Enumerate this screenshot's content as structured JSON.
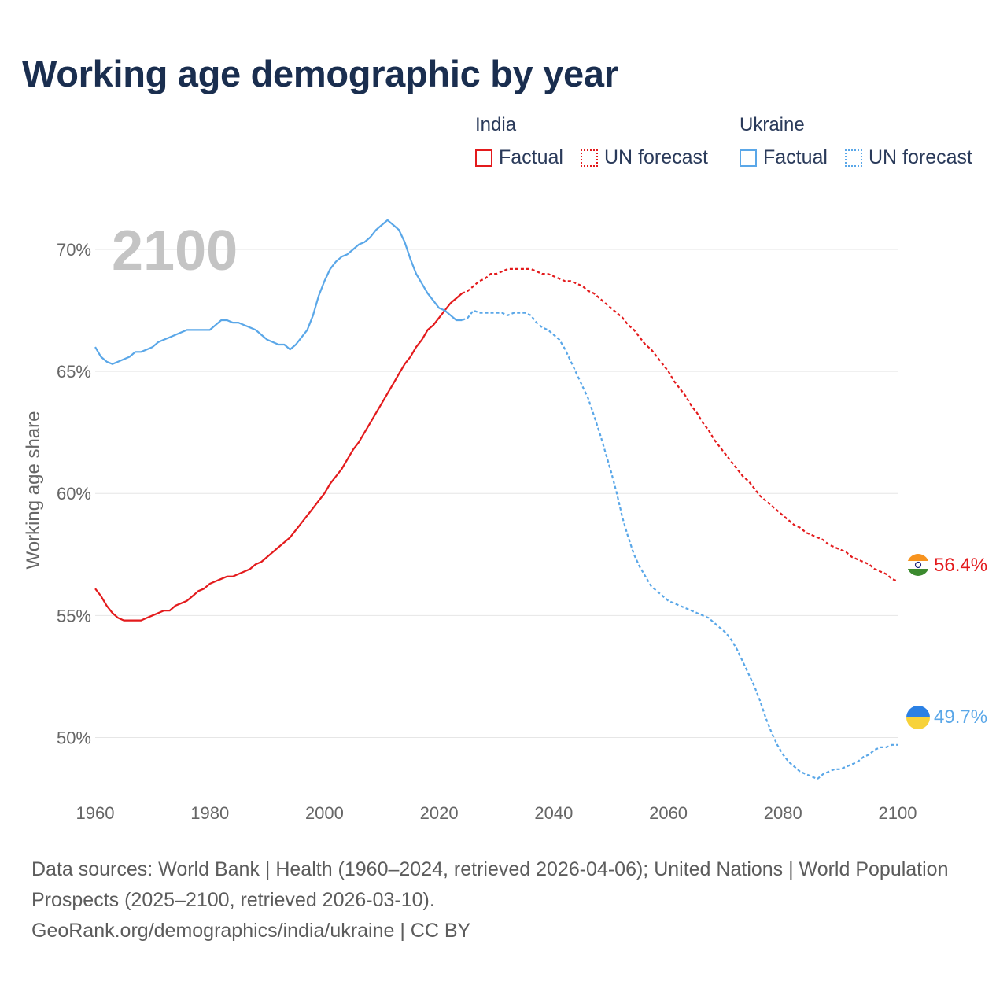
{
  "title": "Working age demographic by year",
  "year_label": "2100",
  "legend": {
    "india": {
      "title": "India",
      "factual": "Factual",
      "forecast": "UN forecast"
    },
    "ukraine": {
      "title": "Ukraine",
      "factual": "Factual",
      "forecast": "UN forecast"
    }
  },
  "footer": {
    "sources": "Data sources: World Bank | Health (1960–2024, retrieved 2026-04-06); United Nations | World Population Prospects (2025–2100, retrieved 2026-03-10).",
    "credit": "GeoRank.org/demographics/india/ukraine | CC BY"
  },
  "colors": {
    "india": "#e31a1c",
    "ukraine": "#5aa7e8",
    "grid": "#e6e6e6",
    "axis_text": "#666666",
    "year_watermark": "#c4c4c4"
  },
  "chart_data": {
    "type": "line",
    "title": "Working age demographic by year",
    "xlabel": "",
    "ylabel": "Working age share",
    "xlim": [
      1960,
      2100
    ],
    "ylim": [
      47.5,
      72
    ],
    "x_ticks": [
      1960,
      1980,
      2000,
      2020,
      2040,
      2060,
      2080,
      2100
    ],
    "y_ticks": [
      50,
      55,
      60,
      65,
      70
    ],
    "y_tick_labels": [
      "50%",
      "55%",
      "60%",
      "65%",
      "70%"
    ],
    "series": [
      {
        "name": "India",
        "segment": "Factual",
        "style": "solid",
        "points": [
          [
            1960,
            56.1
          ],
          [
            1961,
            55.8
          ],
          [
            1962,
            55.4
          ],
          [
            1963,
            55.1
          ],
          [
            1964,
            54.9
          ],
          [
            1965,
            54.8
          ],
          [
            1966,
            54.8
          ],
          [
            1967,
            54.8
          ],
          [
            1968,
            54.8
          ],
          [
            1969,
            54.9
          ],
          [
            1970,
            55.0
          ],
          [
            1971,
            55.1
          ],
          [
            1972,
            55.2
          ],
          [
            1973,
            55.2
          ],
          [
            1974,
            55.4
          ],
          [
            1975,
            55.5
          ],
          [
            1976,
            55.6
          ],
          [
            1977,
            55.8
          ],
          [
            1978,
            56.0
          ],
          [
            1979,
            56.1
          ],
          [
            1980,
            56.3
          ],
          [
            1981,
            56.4
          ],
          [
            1982,
            56.5
          ],
          [
            1983,
            56.6
          ],
          [
            1984,
            56.6
          ],
          [
            1985,
            56.7
          ],
          [
            1986,
            56.8
          ],
          [
            1987,
            56.9
          ],
          [
            1988,
            57.1
          ],
          [
            1989,
            57.2
          ],
          [
            1990,
            57.4
          ],
          [
            1991,
            57.6
          ],
          [
            1992,
            57.8
          ],
          [
            1993,
            58.0
          ],
          [
            1994,
            58.2
          ],
          [
            1995,
            58.5
          ],
          [
            1996,
            58.8
          ],
          [
            1997,
            59.1
          ],
          [
            1998,
            59.4
          ],
          [
            1999,
            59.7
          ],
          [
            2000,
            60.0
          ],
          [
            2001,
            60.4
          ],
          [
            2002,
            60.7
          ],
          [
            2003,
            61.0
          ],
          [
            2004,
            61.4
          ],
          [
            2005,
            61.8
          ],
          [
            2006,
            62.1
          ],
          [
            2007,
            62.5
          ],
          [
            2008,
            62.9
          ],
          [
            2009,
            63.3
          ],
          [
            2010,
            63.7
          ],
          [
            2011,
            64.1
          ],
          [
            2012,
            64.5
          ],
          [
            2013,
            64.9
          ],
          [
            2014,
            65.3
          ],
          [
            2015,
            65.6
          ],
          [
            2016,
            66.0
          ],
          [
            2017,
            66.3
          ],
          [
            2018,
            66.7
          ],
          [
            2019,
            66.9
          ],
          [
            2020,
            67.2
          ],
          [
            2021,
            67.5
          ],
          [
            2022,
            67.8
          ],
          [
            2023,
            68.0
          ],
          [
            2024,
            68.2
          ]
        ]
      },
      {
        "name": "India",
        "segment": "UN forecast",
        "style": "dashed",
        "points": [
          [
            2024,
            68.2
          ],
          [
            2025,
            68.3
          ],
          [
            2026,
            68.5
          ],
          [
            2027,
            68.7
          ],
          [
            2028,
            68.8
          ],
          [
            2029,
            69.0
          ],
          [
            2030,
            69.0
          ],
          [
            2031,
            69.1
          ],
          [
            2032,
            69.2
          ],
          [
            2033,
            69.2
          ],
          [
            2034,
            69.2
          ],
          [
            2035,
            69.2
          ],
          [
            2036,
            69.2
          ],
          [
            2037,
            69.1
          ],
          [
            2038,
            69.0
          ],
          [
            2039,
            69.0
          ],
          [
            2040,
            68.9
          ],
          [
            2041,
            68.8
          ],
          [
            2042,
            68.7
          ],
          [
            2043,
            68.7
          ],
          [
            2044,
            68.6
          ],
          [
            2045,
            68.5
          ],
          [
            2046,
            68.3
          ],
          [
            2047,
            68.2
          ],
          [
            2048,
            68.0
          ],
          [
            2049,
            67.8
          ],
          [
            2050,
            67.6
          ],
          [
            2051,
            67.4
          ],
          [
            2052,
            67.2
          ],
          [
            2053,
            66.9
          ],
          [
            2054,
            66.7
          ],
          [
            2055,
            66.4
          ],
          [
            2056,
            66.1
          ],
          [
            2057,
            65.9
          ],
          [
            2058,
            65.6
          ],
          [
            2059,
            65.3
          ],
          [
            2060,
            65.0
          ],
          [
            2061,
            64.6
          ],
          [
            2062,
            64.3
          ],
          [
            2063,
            64.0
          ],
          [
            2064,
            63.6
          ],
          [
            2065,
            63.3
          ],
          [
            2066,
            62.9
          ],
          [
            2067,
            62.6
          ],
          [
            2068,
            62.2
          ],
          [
            2069,
            61.9
          ],
          [
            2070,
            61.6
          ],
          [
            2071,
            61.3
          ],
          [
            2072,
            61.0
          ],
          [
            2073,
            60.7
          ],
          [
            2074,
            60.5
          ],
          [
            2075,
            60.2
          ],
          [
            2076,
            59.9
          ],
          [
            2077,
            59.7
          ],
          [
            2078,
            59.5
          ],
          [
            2079,
            59.3
          ],
          [
            2080,
            59.1
          ],
          [
            2081,
            58.9
          ],
          [
            2082,
            58.7
          ],
          [
            2083,
            58.6
          ],
          [
            2084,
            58.4
          ],
          [
            2085,
            58.3
          ],
          [
            2086,
            58.2
          ],
          [
            2087,
            58.1
          ],
          [
            2088,
            57.9
          ],
          [
            2089,
            57.8
          ],
          [
            2090,
            57.7
          ],
          [
            2091,
            57.6
          ],
          [
            2092,
            57.4
          ],
          [
            2093,
            57.3
          ],
          [
            2094,
            57.2
          ],
          [
            2095,
            57.1
          ],
          [
            2096,
            56.9
          ],
          [
            2097,
            56.8
          ],
          [
            2098,
            56.7
          ],
          [
            2099,
            56.5
          ],
          [
            2100,
            56.4
          ]
        ]
      },
      {
        "name": "Ukraine",
        "segment": "Factual",
        "style": "solid",
        "points": [
          [
            1960,
            66.0
          ],
          [
            1961,
            65.6
          ],
          [
            1962,
            65.4
          ],
          [
            1963,
            65.3
          ],
          [
            1964,
            65.4
          ],
          [
            1965,
            65.5
          ],
          [
            1966,
            65.6
          ],
          [
            1967,
            65.8
          ],
          [
            1968,
            65.8
          ],
          [
            1969,
            65.9
          ],
          [
            1970,
            66.0
          ],
          [
            1971,
            66.2
          ],
          [
            1972,
            66.3
          ],
          [
            1973,
            66.4
          ],
          [
            1974,
            66.5
          ],
          [
            1975,
            66.6
          ],
          [
            1976,
            66.7
          ],
          [
            1977,
            66.7
          ],
          [
            1978,
            66.7
          ],
          [
            1979,
            66.7
          ],
          [
            1980,
            66.7
          ],
          [
            1981,
            66.9
          ],
          [
            1982,
            67.1
          ],
          [
            1983,
            67.1
          ],
          [
            1984,
            67.0
          ],
          [
            1985,
            67.0
          ],
          [
            1986,
            66.9
          ],
          [
            1987,
            66.8
          ],
          [
            1988,
            66.7
          ],
          [
            1989,
            66.5
          ],
          [
            1990,
            66.3
          ],
          [
            1991,
            66.2
          ],
          [
            1992,
            66.1
          ],
          [
            1993,
            66.1
          ],
          [
            1994,
            65.9
          ],
          [
            1995,
            66.1
          ],
          [
            1996,
            66.4
          ],
          [
            1997,
            66.7
          ],
          [
            1998,
            67.3
          ],
          [
            1999,
            68.1
          ],
          [
            2000,
            68.7
          ],
          [
            2001,
            69.2
          ],
          [
            2002,
            69.5
          ],
          [
            2003,
            69.7
          ],
          [
            2004,
            69.8
          ],
          [
            2005,
            70.0
          ],
          [
            2006,
            70.2
          ],
          [
            2007,
            70.3
          ],
          [
            2008,
            70.5
          ],
          [
            2009,
            70.8
          ],
          [
            2010,
            71.0
          ],
          [
            2011,
            71.2
          ],
          [
            2012,
            71.0
          ],
          [
            2013,
            70.8
          ],
          [
            2014,
            70.3
          ],
          [
            2015,
            69.6
          ],
          [
            2016,
            69.0
          ],
          [
            2017,
            68.6
          ],
          [
            2018,
            68.2
          ],
          [
            2019,
            67.9
          ],
          [
            2020,
            67.6
          ],
          [
            2021,
            67.5
          ],
          [
            2022,
            67.3
          ],
          [
            2023,
            67.1
          ],
          [
            2024,
            67.1
          ]
        ]
      },
      {
        "name": "Ukraine",
        "segment": "UN forecast",
        "style": "dashed",
        "points": [
          [
            2024,
            67.1
          ],
          [
            2025,
            67.2
          ],
          [
            2026,
            67.5
          ],
          [
            2027,
            67.4
          ],
          [
            2028,
            67.4
          ],
          [
            2029,
            67.4
          ],
          [
            2030,
            67.4
          ],
          [
            2031,
            67.4
          ],
          [
            2032,
            67.3
          ],
          [
            2033,
            67.4
          ],
          [
            2034,
            67.4
          ],
          [
            2035,
            67.4
          ],
          [
            2036,
            67.3
          ],
          [
            2037,
            67.0
          ],
          [
            2038,
            66.8
          ],
          [
            2039,
            66.7
          ],
          [
            2040,
            66.5
          ],
          [
            2041,
            66.3
          ],
          [
            2042,
            65.9
          ],
          [
            2043,
            65.4
          ],
          [
            2044,
            64.9
          ],
          [
            2045,
            64.4
          ],
          [
            2046,
            63.9
          ],
          [
            2047,
            63.2
          ],
          [
            2048,
            62.5
          ],
          [
            2049,
            61.7
          ],
          [
            2050,
            60.9
          ],
          [
            2051,
            60.0
          ],
          [
            2052,
            59.0
          ],
          [
            2053,
            58.2
          ],
          [
            2054,
            57.5
          ],
          [
            2055,
            57.0
          ],
          [
            2056,
            56.6
          ],
          [
            2057,
            56.2
          ],
          [
            2058,
            56.0
          ],
          [
            2059,
            55.8
          ],
          [
            2060,
            55.6
          ],
          [
            2061,
            55.5
          ],
          [
            2062,
            55.4
          ],
          [
            2063,
            55.3
          ],
          [
            2064,
            55.2
          ],
          [
            2065,
            55.1
          ],
          [
            2066,
            55.0
          ],
          [
            2067,
            54.9
          ],
          [
            2068,
            54.7
          ],
          [
            2069,
            54.5
          ],
          [
            2070,
            54.3
          ],
          [
            2071,
            54.0
          ],
          [
            2072,
            53.6
          ],
          [
            2073,
            53.1
          ],
          [
            2074,
            52.6
          ],
          [
            2075,
            52.1
          ],
          [
            2076,
            51.5
          ],
          [
            2077,
            50.8
          ],
          [
            2078,
            50.2
          ],
          [
            2079,
            49.7
          ],
          [
            2080,
            49.3
          ],
          [
            2081,
            49.0
          ],
          [
            2082,
            48.8
          ],
          [
            2083,
            48.6
          ],
          [
            2084,
            48.5
          ],
          [
            2085,
            48.4
          ],
          [
            2086,
            48.3
          ],
          [
            2087,
            48.5
          ],
          [
            2088,
            48.6
          ],
          [
            2089,
            48.7
          ],
          [
            2090,
            48.7
          ],
          [
            2091,
            48.8
          ],
          [
            2092,
            48.9
          ],
          [
            2093,
            49.0
          ],
          [
            2094,
            49.2
          ],
          [
            2095,
            49.3
          ],
          [
            2096,
            49.5
          ],
          [
            2097,
            49.6
          ],
          [
            2098,
            49.6
          ],
          [
            2099,
            49.7
          ],
          [
            2100,
            49.7
          ]
        ]
      }
    ],
    "end_labels": [
      {
        "name": "India",
        "value": 56.4,
        "label": "56.4%"
      },
      {
        "name": "Ukraine",
        "value": 49.7,
        "label": "49.7%"
      }
    ]
  }
}
